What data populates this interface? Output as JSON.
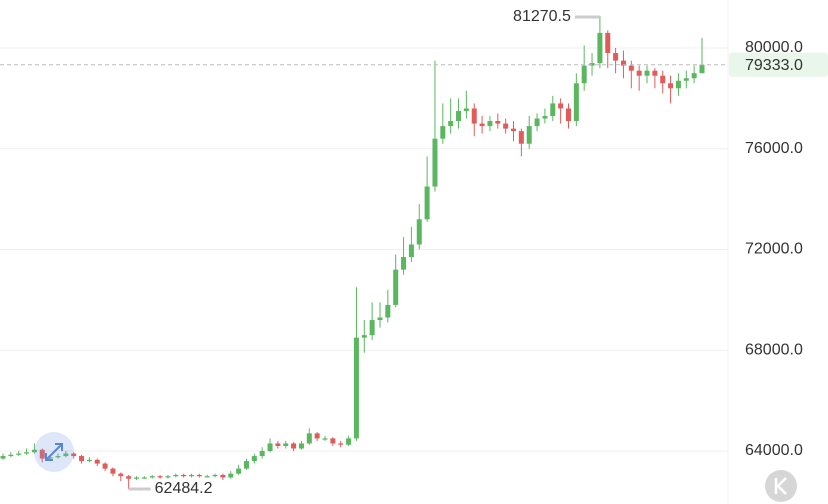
{
  "chart_data": {
    "type": "candlestick",
    "up_color": "#5bb75f",
    "down_color": "#e25b5b",
    "grid": true,
    "ylim": [
      61896,
      81906
    ],
    "yticks": [
      {
        "value": 64000,
        "label": "64000.0"
      },
      {
        "value": 68000,
        "label": "68000.0"
      },
      {
        "value": 72000,
        "label": "72000.0"
      },
      {
        "value": 76000,
        "label": "76000.0"
      },
      {
        "value": 80000,
        "label": "80000.0"
      }
    ],
    "open": [
      63700,
      63800,
      63850,
      63900,
      63950,
      64050,
      63700,
      63750,
      63800,
      63900,
      63800,
      63600,
      63650,
      63500,
      63300,
      63100,
      63000,
      62900,
      62950,
      62950,
      63000,
      62950,
      63000,
      63050,
      63000,
      63050,
      63000,
      63000,
      63050,
      62950,
      63100,
      63300,
      63600,
      63800,
      64000,
      64300,
      64200,
      64300,
      64100,
      64300,
      64700,
      64500,
      64500,
      64300,
      64250,
      64500,
      68500,
      68600,
      69200,
      69300,
      69800,
      71200,
      71700,
      72200,
      73200,
      74500,
      76400,
      76900,
      77100,
      77500,
      77600,
      77000,
      76900,
      77100,
      77000,
      76800,
      76700,
      76200,
      76900,
      77200,
      77300,
      77800,
      77600,
      77100,
      78600,
      79300,
      79400,
      80600,
      79800,
      79500,
      79300,
      79100,
      78900,
      79100,
      78900,
      78600,
      78400,
      78700,
      78800,
      79000
    ],
    "high": [
      63900,
      63950,
      64000,
      64100,
      64300,
      64100,
      63850,
      63900,
      64000,
      63950,
      63850,
      63750,
      63700,
      63550,
      63350,
      63150,
      63050,
      63000,
      63000,
      63050,
      63050,
      63050,
      63100,
      63100,
      63100,
      63100,
      63050,
      63100,
      63100,
      63200,
      63450,
      63700,
      63900,
      64150,
      64500,
      64400,
      64400,
      64350,
      64400,
      64900,
      64750,
      64600,
      64550,
      64400,
      64600,
      70500,
      69200,
      69900,
      69900,
      70400,
      71800,
      72500,
      72900,
      73800,
      75700,
      79500,
      77800,
      78000,
      78000,
      78300,
      77800,
      77300,
      77300,
      77400,
      77200,
      77100,
      76800,
      77300,
      77400,
      77600,
      78100,
      78000,
      77800,
      79000,
      80100,
      79800,
      81270.5,
      80700,
      80000,
      79900,
      79500,
      79300,
      79300,
      79200,
      79100,
      78900,
      79000,
      79100,
      79300,
      80400
    ],
    "low": [
      63650,
      63750,
      63800,
      63850,
      63900,
      63550,
      63600,
      63700,
      63750,
      63700,
      63500,
      63550,
      63400,
      63200,
      63000,
      62800,
      62484.2,
      62850,
      62900,
      62900,
      62900,
      62900,
      62950,
      62950,
      62950,
      62950,
      62950,
      62950,
      62850,
      62900,
      63050,
      63250,
      63500,
      63700,
      63950,
      64100,
      64100,
      64000,
      64050,
      64250,
      64400,
      64400,
      64200,
      64150,
      64200,
      64400,
      67900,
      68400,
      68900,
      69100,
      69700,
      71000,
      71500,
      72000,
      73100,
      74300,
      76200,
      76600,
      76800,
      77200,
      76500,
      76600,
      76700,
      76800,
      76600,
      76300,
      75700,
      76000,
      76700,
      77000,
      77100,
      77000,
      76800,
      76900,
      78300,
      78900,
      79200,
      79200,
      79000,
      78800,
      78400,
      78300,
      78600,
      78400,
      78200,
      77800,
      78100,
      78400,
      78600,
      79000
    ],
    "close": [
      63800,
      63850,
      63900,
      63950,
      64050,
      63700,
      63750,
      63800,
      63900,
      63800,
      63600,
      63650,
      63500,
      63300,
      63100,
      63000,
      62900,
      62950,
      62950,
      63000,
      62950,
      63000,
      63050,
      63000,
      63050,
      63000,
      63000,
      63050,
      62950,
      63100,
      63300,
      63600,
      63800,
      64000,
      64300,
      64200,
      64300,
      64100,
      64300,
      64700,
      64500,
      64500,
      64300,
      64250,
      64500,
      68500,
      68600,
      69200,
      69300,
      69800,
      71200,
      71700,
      72200,
      73200,
      74500,
      76400,
      76900,
      77100,
      77500,
      77600,
      77000,
      76900,
      77100,
      77000,
      76800,
      76700,
      76200,
      76900,
      77200,
      77300,
      77800,
      77600,
      77100,
      78600,
      79300,
      79400,
      80600,
      79800,
      79500,
      79300,
      79100,
      78900,
      79100,
      78900,
      78600,
      78400,
      78700,
      78800,
      79000,
      79333
    ],
    "max_label": 81270.5,
    "min_label": 62484.2,
    "current_price": {
      "value": 79333,
      "label": "79333.0"
    }
  }
}
